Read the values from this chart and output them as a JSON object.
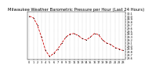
{
  "title": "Milwaukee Weather Barometric Pressure per Hour (Last 24 Hours)",
  "hours": [
    0,
    1,
    2,
    3,
    4,
    5,
    6,
    7,
    8,
    9,
    10,
    11,
    12,
    13,
    14,
    15,
    16,
    17,
    18,
    19,
    20,
    21,
    22,
    23
  ],
  "pressure": [
    30.0,
    29.95,
    29.7,
    29.3,
    28.85,
    28.65,
    28.75,
    28.9,
    29.1,
    29.3,
    29.4,
    29.42,
    29.35,
    29.25,
    29.2,
    29.3,
    29.42,
    29.38,
    29.2,
    29.1,
    29.05,
    28.95,
    28.9,
    28.85
  ],
  "line_color": "#cc0000",
  "marker_color": "#000000",
  "ylim_min": 28.55,
  "ylim_max": 30.15,
  "ytick_vals": [
    28.6,
    28.7,
    28.8,
    28.9,
    29.0,
    29.1,
    29.2,
    29.3,
    29.4,
    29.5,
    29.6,
    29.7,
    29.8,
    29.9,
    30.0,
    30.1
  ],
  "ytick_labels": [
    "28.6",
    "28.7",
    "28.8",
    "28.9",
    "29.0",
    "29.1",
    "29.2",
    "29.3",
    "29.4",
    "29.5",
    "29.6",
    "29.7",
    "29.8",
    "29.9",
    "30.0",
    "30.1"
  ],
  "bg_color": "#ffffff",
  "grid_color": "#888888",
  "title_fontsize": 3.8,
  "tick_fontsize": 2.5,
  "line_width": 0.6,
  "marker_size": 1.2
}
